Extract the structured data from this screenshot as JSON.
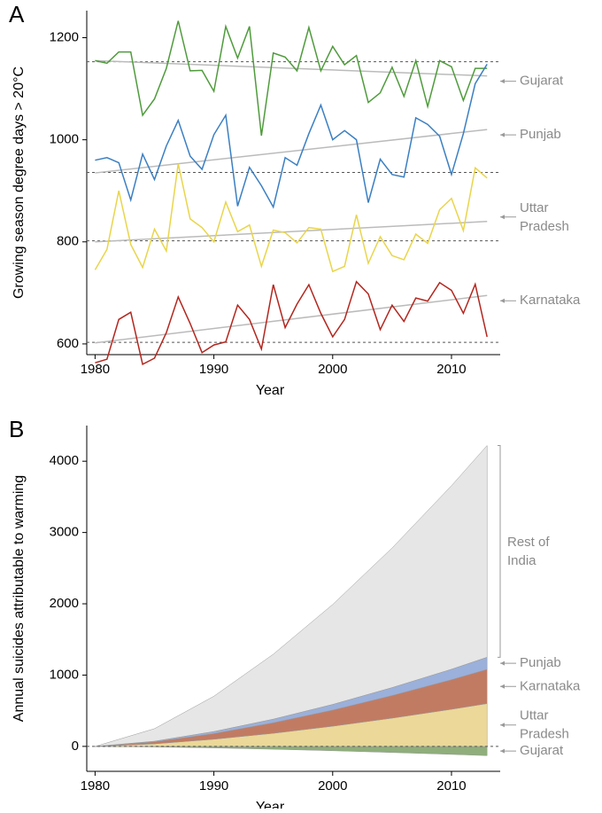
{
  "chart_data": [
    {
      "type": "line",
      "panel": "A",
      "y_label": "Growing season degree days > 20°C",
      "x_label": "Year",
      "x": [
        1980,
        1981,
        1982,
        1983,
        1984,
        1985,
        1986,
        1987,
        1988,
        1989,
        1990,
        1991,
        1992,
        1993,
        1994,
        1995,
        1996,
        1997,
        1998,
        1999,
        2000,
        2001,
        2002,
        2003,
        2004,
        2005,
        2006,
        2007,
        2008,
        2009,
        2010,
        2011,
        2012,
        2013
      ],
      "xlim": [
        1979.3,
        2014.1
      ],
      "xticks": [
        1980,
        1990,
        2000,
        2010
      ],
      "ylim": [
        579,
        1253
      ],
      "yticks": [
        600,
        800,
        1000,
        1200
      ],
      "series": [
        {
          "name": "Gujarat",
          "color": "#4f9b3c",
          "trend": [
            1155,
            1125
          ],
          "baseline": 1153,
          "values": [
            1155,
            1150,
            1172,
            1172,
            1048,
            1080,
            1140,
            1233,
            1135,
            1136,
            1095,
            1222,
            1160,
            1222,
            1008,
            1170,
            1162,
            1135,
            1220,
            1135,
            1183,
            1147,
            1165,
            1073,
            1092,
            1142,
            1085,
            1155,
            1065,
            1155,
            1143,
            1077,
            1140,
            1140
          ]
        },
        {
          "name": "Punjab",
          "color": "#3b7fc2",
          "trend": [
            935,
            1020
          ],
          "baseline": 936,
          "values": [
            960,
            965,
            955,
            882,
            972,
            922,
            988,
            1038,
            968,
            942,
            1010,
            1048,
            870,
            946,
            910,
            868,
            965,
            950,
            1012,
            1068,
            1000,
            1018,
            1000,
            877,
            962,
            932,
            927,
            1043,
            1030,
            1007,
            932,
            1012,
            1110,
            1148
          ]
        },
        {
          "name": "Uttar Pradesh",
          "color": "#e9d54a",
          "trend": [
            800,
            840
          ],
          "baseline": 802,
          "values": [
            745,
            785,
            900,
            795,
            750,
            825,
            782,
            953,
            845,
            828,
            800,
            878,
            820,
            833,
            752,
            823,
            818,
            798,
            828,
            825,
            742,
            752,
            853,
            758,
            810,
            773,
            765,
            815,
            797,
            863,
            885,
            822,
            945,
            925
          ]
        },
        {
          "name": "Karnataka",
          "color": "#b3261e",
          "trend": [
            602,
            695
          ],
          "baseline": 603,
          "values": [
            563,
            570,
            648,
            662,
            560,
            572,
            622,
            692,
            640,
            583,
            598,
            604,
            676,
            648,
            590,
            716,
            632,
            678,
            716,
            660,
            614,
            648,
            722,
            698,
            628,
            676,
            644,
            690,
            684,
            720,
            705,
            660,
            717,
            614
          ]
        }
      ]
    },
    {
      "type": "stacked_area",
      "panel": "B",
      "y_label": "Annual suicides attributable to warming",
      "x_label": "Year",
      "x": [
        1980,
        1985,
        1990,
        1995,
        2000,
        2005,
        2010,
        2013
      ],
      "xlim": [
        1979.3,
        2014.1
      ],
      "xticks": [
        1980,
        1990,
        2000,
        2010
      ],
      "ylim": [
        -350,
        4500
      ],
      "yticks": [
        0,
        1000,
        2000,
        3000,
        4000
      ],
      "series": [
        {
          "name": "Gujarat",
          "color": "#8fae7b",
          "values": [
            0,
            -8,
            -22,
            -40,
            -61,
            -86,
            -113,
            -130
          ]
        },
        {
          "name": "Uttar Pradesh",
          "color": "#ecd898",
          "values": [
            0,
            35,
            100,
            184,
            283,
            396,
            520,
            600
          ]
        },
        {
          "name": "Karnataka",
          "color": "#c27b63",
          "values": [
            0,
            28,
            80,
            147,
            226,
            317,
            416,
            480
          ]
        },
        {
          "name": "Punjab",
          "color": "#9bb0da",
          "values": [
            0,
            10,
            28,
            52,
            80,
            112,
            147,
            170
          ]
        },
        {
          "name": "Rest of India",
          "color": "#e6e6e6",
          "values": [
            0,
            175,
            495,
            910,
            1401,
            1958,
            2574,
            2970
          ]
        }
      ]
    }
  ]
}
